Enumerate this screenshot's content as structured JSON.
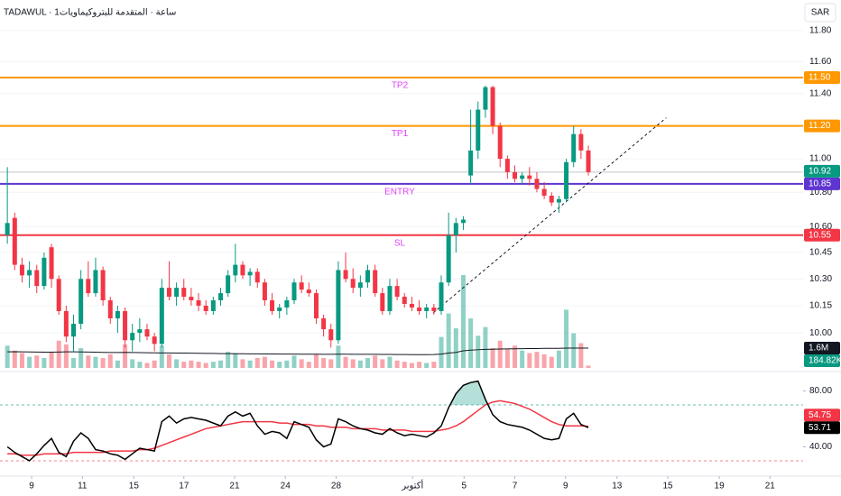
{
  "header": {
    "title": "TADAWUL · 1ساعة · المتقدمة للبتروكيماويات",
    "currency": "SAR"
  },
  "chart_data": {
    "type": "candlestick",
    "log_scale": true,
    "grid": true,
    "xlim": [
      -1,
      108.2
    ],
    "xticks": [
      {
        "value": 3.3,
        "label": "9"
      },
      {
        "value": 10.2,
        "label": "11"
      },
      {
        "value": 17.2,
        "label": "15"
      },
      {
        "value": 24.0,
        "label": "17"
      },
      {
        "value": 30.9,
        "label": "21"
      },
      {
        "value": 37.8,
        "label": "24"
      },
      {
        "value": 44.7,
        "label": "28"
      },
      {
        "value": 55.1,
        "label": "أكتوبر"
      },
      {
        "value": 62.1,
        "label": "5"
      },
      {
        "value": 69.0,
        "label": "7"
      },
      {
        "value": 75.9,
        "label": "9"
      },
      {
        "value": 82.9,
        "label": "13"
      },
      {
        "value": 89.8,
        "label": "15"
      },
      {
        "value": 96.8,
        "label": "19"
      },
      {
        "value": 103.7,
        "label": "21"
      }
    ],
    "ylim": [
      9.81,
      11.94
    ],
    "yticks": [
      {
        "value": 10.0,
        "label": "10.00"
      },
      {
        "value": 10.15,
        "label": "10.15"
      },
      {
        "value": 10.3,
        "label": "10.30"
      },
      {
        "value": 10.45,
        "label": "10.45"
      },
      {
        "value": 10.6,
        "label": "10.60"
      },
      {
        "value": 10.8,
        "label": "10.80"
      },
      {
        "value": 11.0,
        "label": "11.00"
      },
      {
        "value": 11.4,
        "label": "11.40"
      },
      {
        "value": 11.6,
        "label": "11.60"
      },
      {
        "value": 11.8,
        "label": "11.80"
      }
    ],
    "colors": {
      "up": "#089981",
      "down": "#f23645"
    },
    "open": [
      10.55,
      10.65,
      10.38,
      10.32,
      10.35,
      10.26,
      10.48,
      10.3,
      10.12,
      9.98,
      10.05,
      10.3,
      10.22,
      10.35,
      10.18,
      10.08,
      10.12,
      9.96,
      10.0,
      10.02,
      9.98,
      9.94,
      10.25,
      10.2,
      10.25,
      10.2,
      10.18,
      10.15,
      10.12,
      10.18,
      10.22,
      10.32,
      10.38,
      10.32,
      10.34,
      10.28,
      10.18,
      10.12,
      10.14,
      10.18,
      10.28,
      10.24,
      10.22,
      10.08,
      10.02,
      9.96,
      10.35,
      10.3,
      10.25,
      10.28,
      10.35,
      10.22,
      10.12,
      10.26,
      10.2,
      10.16,
      10.14,
      10.12,
      10.14,
      10.12,
      10.28,
      10.55,
      10.62,
      10.9,
      11.05,
      11.3,
      11.44,
      11.2,
      11.0,
      10.92,
      10.88,
      10.9,
      10.88,
      10.82,
      10.78,
      10.74,
      10.76,
      10.98,
      11.15,
      11.05
    ],
    "high": [
      10.95,
      10.68,
      10.42,
      10.4,
      10.38,
      10.45,
      10.5,
      10.32,
      10.15,
      10.1,
      10.35,
      10.4,
      10.42,
      10.37,
      10.2,
      10.15,
      10.14,
      10.05,
      10.08,
      10.05,
      10.0,
      10.3,
      10.4,
      10.28,
      10.3,
      10.25,
      10.22,
      10.18,
      10.2,
      10.25,
      10.35,
      10.5,
      10.4,
      10.36,
      10.36,
      10.3,
      10.22,
      10.16,
      10.2,
      10.3,
      10.32,
      10.28,
      10.24,
      10.1,
      10.05,
      10.4,
      10.45,
      10.36,
      10.32,
      10.38,
      10.38,
      10.25,
      10.3,
      10.3,
      10.22,
      10.2,
      10.18,
      10.16,
      10.16,
      10.32,
      10.68,
      10.65,
      10.66,
      11.3,
      11.35,
      11.45,
      11.45,
      11.22,
      11.02,
      10.96,
      10.92,
      10.95,
      10.92,
      10.86,
      10.8,
      10.78,
      11.0,
      11.2,
      11.18,
      11.08
    ],
    "low": [
      10.5,
      10.35,
      10.28,
      10.25,
      10.22,
      10.24,
      10.25,
      10.1,
      9.95,
      9.9,
      10.02,
      10.2,
      10.2,
      10.15,
      10.05,
      10.0,
      9.92,
      9.9,
      9.95,
      9.96,
      9.9,
      9.92,
      10.18,
      10.15,
      10.18,
      10.15,
      10.12,
      10.1,
      10.1,
      10.15,
      10.2,
      10.28,
      10.3,
      10.26,
      10.25,
      10.15,
      10.1,
      10.08,
      10.1,
      10.16,
      10.22,
      10.2,
      10.05,
      9.98,
      9.92,
      9.94,
      10.28,
      10.22,
      10.2,
      10.25,
      10.2,
      10.1,
      10.1,
      10.18,
      10.14,
      10.12,
      10.1,
      10.08,
      10.1,
      10.1,
      10.26,
      10.45,
      10.58,
      10.85,
      11.0,
      11.25,
      11.15,
      10.95,
      10.88,
      10.86,
      10.85,
      10.84,
      10.8,
      10.76,
      10.72,
      10.68,
      10.74,
      10.95,
      11.0,
      10.9
    ],
    "close": [
      10.62,
      10.38,
      10.32,
      10.35,
      10.26,
      10.42,
      10.3,
      10.12,
      9.98,
      10.05,
      10.3,
      10.22,
      10.35,
      10.18,
      10.08,
      10.12,
      9.96,
      10.0,
      10.02,
      9.98,
      9.94,
      10.25,
      10.2,
      10.25,
      10.2,
      10.18,
      10.15,
      10.12,
      10.18,
      10.22,
      10.32,
      10.38,
      10.32,
      10.34,
      10.28,
      10.18,
      10.12,
      10.14,
      10.18,
      10.28,
      10.24,
      10.22,
      10.08,
      10.02,
      9.96,
      10.35,
      10.3,
      10.25,
      10.28,
      10.35,
      10.22,
      10.12,
      10.26,
      10.2,
      10.16,
      10.14,
      10.12,
      10.14,
      10.12,
      10.28,
      10.55,
      10.62,
      10.64,
      11.05,
      11.3,
      11.44,
      11.2,
      11.0,
      10.92,
      10.88,
      10.9,
      10.88,
      10.82,
      10.78,
      10.74,
      10.76,
      10.98,
      11.15,
      11.05,
      10.92
    ],
    "last_price": {
      "value": 10.92,
      "color": "#089981"
    },
    "levels": [
      {
        "name": "TP2",
        "value": 11.5,
        "label": "11.50",
        "color": "#ff9800"
      },
      {
        "name": "TP1",
        "value": 11.2,
        "label": "11.20",
        "color": "#ff9800"
      },
      {
        "name": "ENTRY",
        "value": 10.85,
        "label": "10.85",
        "color": "#5e35d1"
      },
      {
        "name": "SL",
        "value": 10.55,
        "label": "10.55",
        "color": "#f23645"
      }
    ],
    "level_text_color": "#e040fb",
    "trendline": {
      "x": [
        57.9,
        89.6
      ],
      "y": [
        10.11,
        11.25
      ]
    },
    "volume": {
      "ylim": [
        0,
        7500000
      ],
      "values": [
        1800000,
        1400000,
        1200000,
        900000,
        1000000,
        800000,
        1300000,
        2200000,
        1900000,
        800000,
        1600000,
        1000000,
        900000,
        800000,
        1100000,
        600000,
        1900000,
        700000,
        500000,
        400000,
        600000,
        1800000,
        1100000,
        700000,
        500000,
        600000,
        500000,
        400000,
        500000,
        600000,
        1300000,
        1200000,
        700000,
        600000,
        800000,
        900000,
        600000,
        500000,
        600000,
        1000000,
        700000,
        500000,
        1100000,
        800000,
        700000,
        1800000,
        900000,
        700000,
        600000,
        800000,
        1000000,
        700000,
        900000,
        600000,
        500000,
        400000,
        500000,
        400000,
        500000,
        2500000,
        4400000,
        3200000,
        7500000,
        4000000,
        2600000,
        3300000,
        1600000,
        2200000,
        1500000,
        1800000,
        1400000,
        1200000,
        1300000,
        1100000,
        900000,
        1400000,
        4700000,
        2800000,
        2000000,
        184820
      ],
      "last_label": "184.82K",
      "ma": {
        "color": "#131722",
        "label": "1.6M",
        "values": [
          1300000,
          1310000,
          1300000,
          1290000,
          1280000,
          1270000,
          1270000,
          1280000,
          1300000,
          1300000,
          1290000,
          1280000,
          1270000,
          1260000,
          1250000,
          1250000,
          1260000,
          1250000,
          1240000,
          1230000,
          1220000,
          1210000,
          1210000,
          1200000,
          1200000,
          1190000,
          1180000,
          1170000,
          1170000,
          1160000,
          1160000,
          1150000,
          1150000,
          1140000,
          1140000,
          1130000,
          1130000,
          1120000,
          1120000,
          1120000,
          1110000,
          1110000,
          1110000,
          1100000,
          1100000,
          1110000,
          1110000,
          1100000,
          1100000,
          1100000,
          1100000,
          1090000,
          1090000,
          1080000,
          1080000,
          1070000,
          1070000,
          1070000,
          1080000,
          1120000,
          1200000,
          1260000,
          1380000,
          1440000,
          1470000,
          1500000,
          1510000,
          1530000,
          1540000,
          1550000,
          1560000,
          1570000,
          1570000,
          1580000,
          1580000,
          1580000,
          1600000,
          1600000,
          1600000,
          1600000
        ]
      }
    },
    "rsi": {
      "ylim": [
        19,
        90
      ],
      "yticks": [
        {
          "value": 80,
          "label": "80.00"
        },
        {
          "value": 40,
          "label": "40.00"
        }
      ],
      "bands": [
        70,
        30
      ],
      "color": "#000000",
      "values": [
        40,
        36,
        33,
        30,
        35,
        41,
        46,
        36,
        33,
        44,
        50,
        46,
        38,
        37,
        35,
        34,
        31,
        35,
        39,
        38,
        37,
        58,
        62,
        57,
        60,
        61,
        60,
        59,
        57,
        55,
        62,
        65,
        62,
        64,
        55,
        49,
        51,
        50,
        46,
        58,
        56,
        54,
        45,
        40,
        42,
        60,
        58,
        55,
        53,
        52,
        50,
        49,
        53,
        50,
        48,
        49,
        48,
        47,
        50,
        55,
        68,
        78,
        84,
        86,
        87,
        74,
        63,
        58,
        56,
        55,
        54,
        52,
        49,
        46,
        45,
        46,
        60,
        64,
        56,
        53.71
      ],
      "ma": {
        "color": "#f23645",
        "values": [
          35,
          35,
          34,
          34,
          34,
          35,
          35,
          35,
          35,
          36,
          36,
          36,
          36,
          36,
          37,
          37,
          37,
          37,
          38,
          38,
          39,
          41,
          43,
          45,
          47,
          49,
          51,
          53,
          54,
          55,
          56,
          57,
          58,
          58,
          58,
          58,
          58,
          57,
          57,
          56,
          56,
          56,
          55,
          55,
          54,
          54,
          54,
          53,
          53,
          53,
          53,
          52,
          52,
          52,
          52,
          51,
          51,
          51,
          51,
          52,
          53,
          55,
          58,
          62,
          66,
          70,
          72,
          73,
          72,
          71,
          69,
          67,
          64,
          61,
          58,
          56,
          55,
          55,
          55,
          54.75
        ]
      }
    }
  }
}
